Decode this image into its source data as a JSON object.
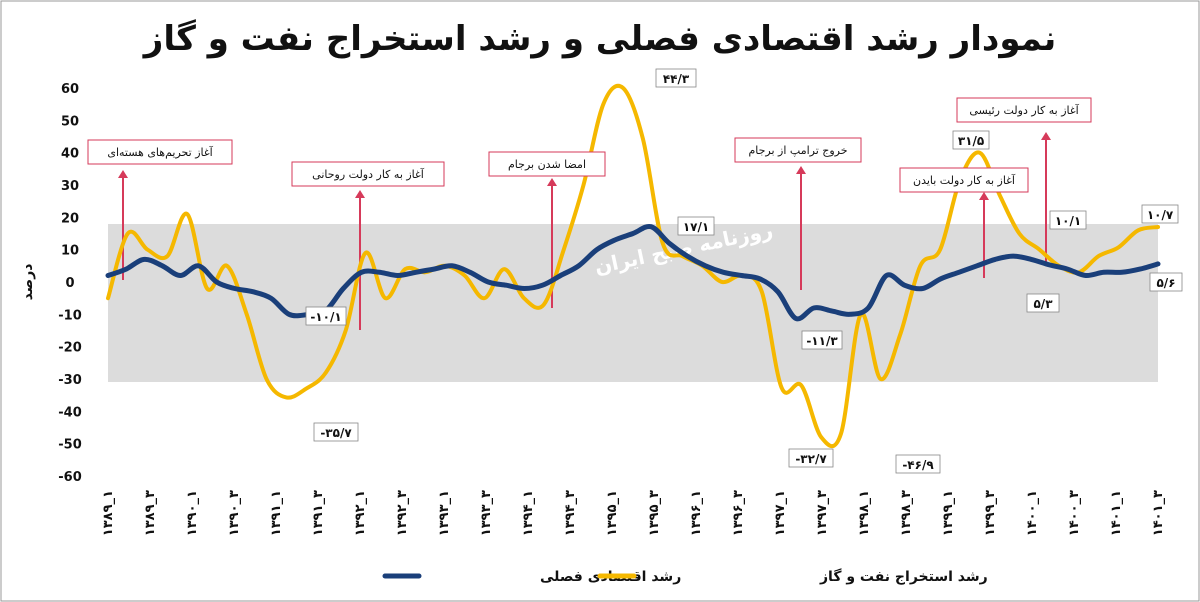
{
  "chart_data": {
    "type": "line",
    "title": "نمودار رشد اقتصادی فصلی و رشد استخراج نفت و گاز",
    "ylabel": "درصد",
    "xlabel": "",
    "ylim": [
      -60,
      60
    ],
    "yticks": [
      "60",
      "50",
      "40",
      "30",
      "20",
      "10",
      "0",
      "-10",
      "-20",
      "-30",
      "-40",
      "-50",
      "-60"
    ],
    "ytick_values": [
      60,
      50,
      40,
      30,
      20,
      10,
      0,
      -10,
      -20,
      -30,
      -40,
      -50,
      -60
    ],
    "x_labels": [
      "۱۳۸۹_۱",
      "۱۳۸۹_۳",
      "۱۳۹۰_۱",
      "۱۳۹۰_۳",
      "۱۳۹۱_۱",
      "۱۳۹۱_۳",
      "۱۳۹۲_۱",
      "۱۳۹۲_۳",
      "۱۳۹۳_۱",
      "۱۳۹۳_۳",
      "۱۳۹۴_۱",
      "۱۳۹۴_۳",
      "۱۳۹۵_۱",
      "۱۳۹۵_۳",
      "۱۳۹۶_۱",
      "۱۳۹۶_۳",
      "۱۳۹۷_۱",
      "۱۳۹۷_۳",
      "۱۳۹۸_۱",
      "۱۳۹۸_۳",
      "۱۳۹۹_۱",
      "۱۳۹۹_۳",
      "۱۴۰۰_۱",
      "۱۴۰۰_۳",
      "۱۴۰۱_۱",
      "۱۴۰۱_۳"
    ],
    "grid": false,
    "legend_position": "bottom",
    "series": [
      {
        "name": "رشد اقتصادی فصلی",
        "color": "#1a3f7a",
        "values": [
          2,
          4,
          7,
          5,
          2,
          5,
          0,
          -2,
          -3,
          -5,
          -10,
          -10.1,
          -9,
          -2,
          3,
          3,
          2,
          3,
          4,
          5,
          3,
          0,
          -1,
          -2,
          -1,
          2,
          5,
          10,
          13,
          15,
          17.1,
          12,
          8,
          5,
          3,
          2,
          1,
          -3,
          -11.3,
          -8,
          -9,
          -10,
          -8,
          2,
          -1,
          -2,
          1,
          3,
          5,
          7,
          8,
          7,
          5.3,
          4,
          2,
          3,
          3,
          4,
          5.6
        ]
      },
      {
        "name": "رشد استخراج نفت و گاز",
        "color": "#f5b800",
        "values": [
          -5,
          15,
          10,
          8,
          21,
          -2,
          5,
          -10,
          -30,
          -35.7,
          -33,
          -28,
          -15,
          9,
          -5,
          4,
          3,
          5,
          2,
          -5,
          4,
          -5,
          -7,
          10,
          30,
          55,
          60,
          44.3,
          12,
          8,
          5,
          0,
          2,
          -3,
          -32.7,
          -32,
          -48,
          -46.9,
          -10,
          -30,
          -16,
          5,
          10,
          31.5,
          40,
          27,
          15,
          10.1,
          5,
          3,
          8,
          10.7,
          16,
          17
        ]
      }
    ],
    "data_labels": [
      {
        "text": "۴۴/۳"
      },
      {
        "text": "۱۷/۱"
      },
      {
        "text": "-۱۰/۱"
      },
      {
        "text": "-۳۵/۷"
      },
      {
        "text": "-۱۱/۳"
      },
      {
        "text": "-۳۲/۷"
      },
      {
        "text": "-۴۶/۹"
      },
      {
        "text": "۳۱/۵"
      },
      {
        "text": "۱۰/۱"
      },
      {
        "text": "۵/۳"
      },
      {
        "text": "۱۰/۷"
      },
      {
        "text": "۵/۶"
      }
    ],
    "annotations": [
      {
        "text": "آغاز تحریم‌های هسته‌ای"
      },
      {
        "text": "آغاز به کار دولت روحانی"
      },
      {
        "text": "امضا شدن برجام"
      },
      {
        "text": "خروج ترامپ از برجام"
      },
      {
        "text": "آغاز به کار دولت بایدن"
      },
      {
        "text": "آغاز به کار دولت رئیسی"
      }
    ],
    "watermark": "روزنامه صبح ایران",
    "colors": {
      "band": "#dcdcdc",
      "arrow": "#d63a5a",
      "annot_border": "#d63a5a"
    }
  }
}
